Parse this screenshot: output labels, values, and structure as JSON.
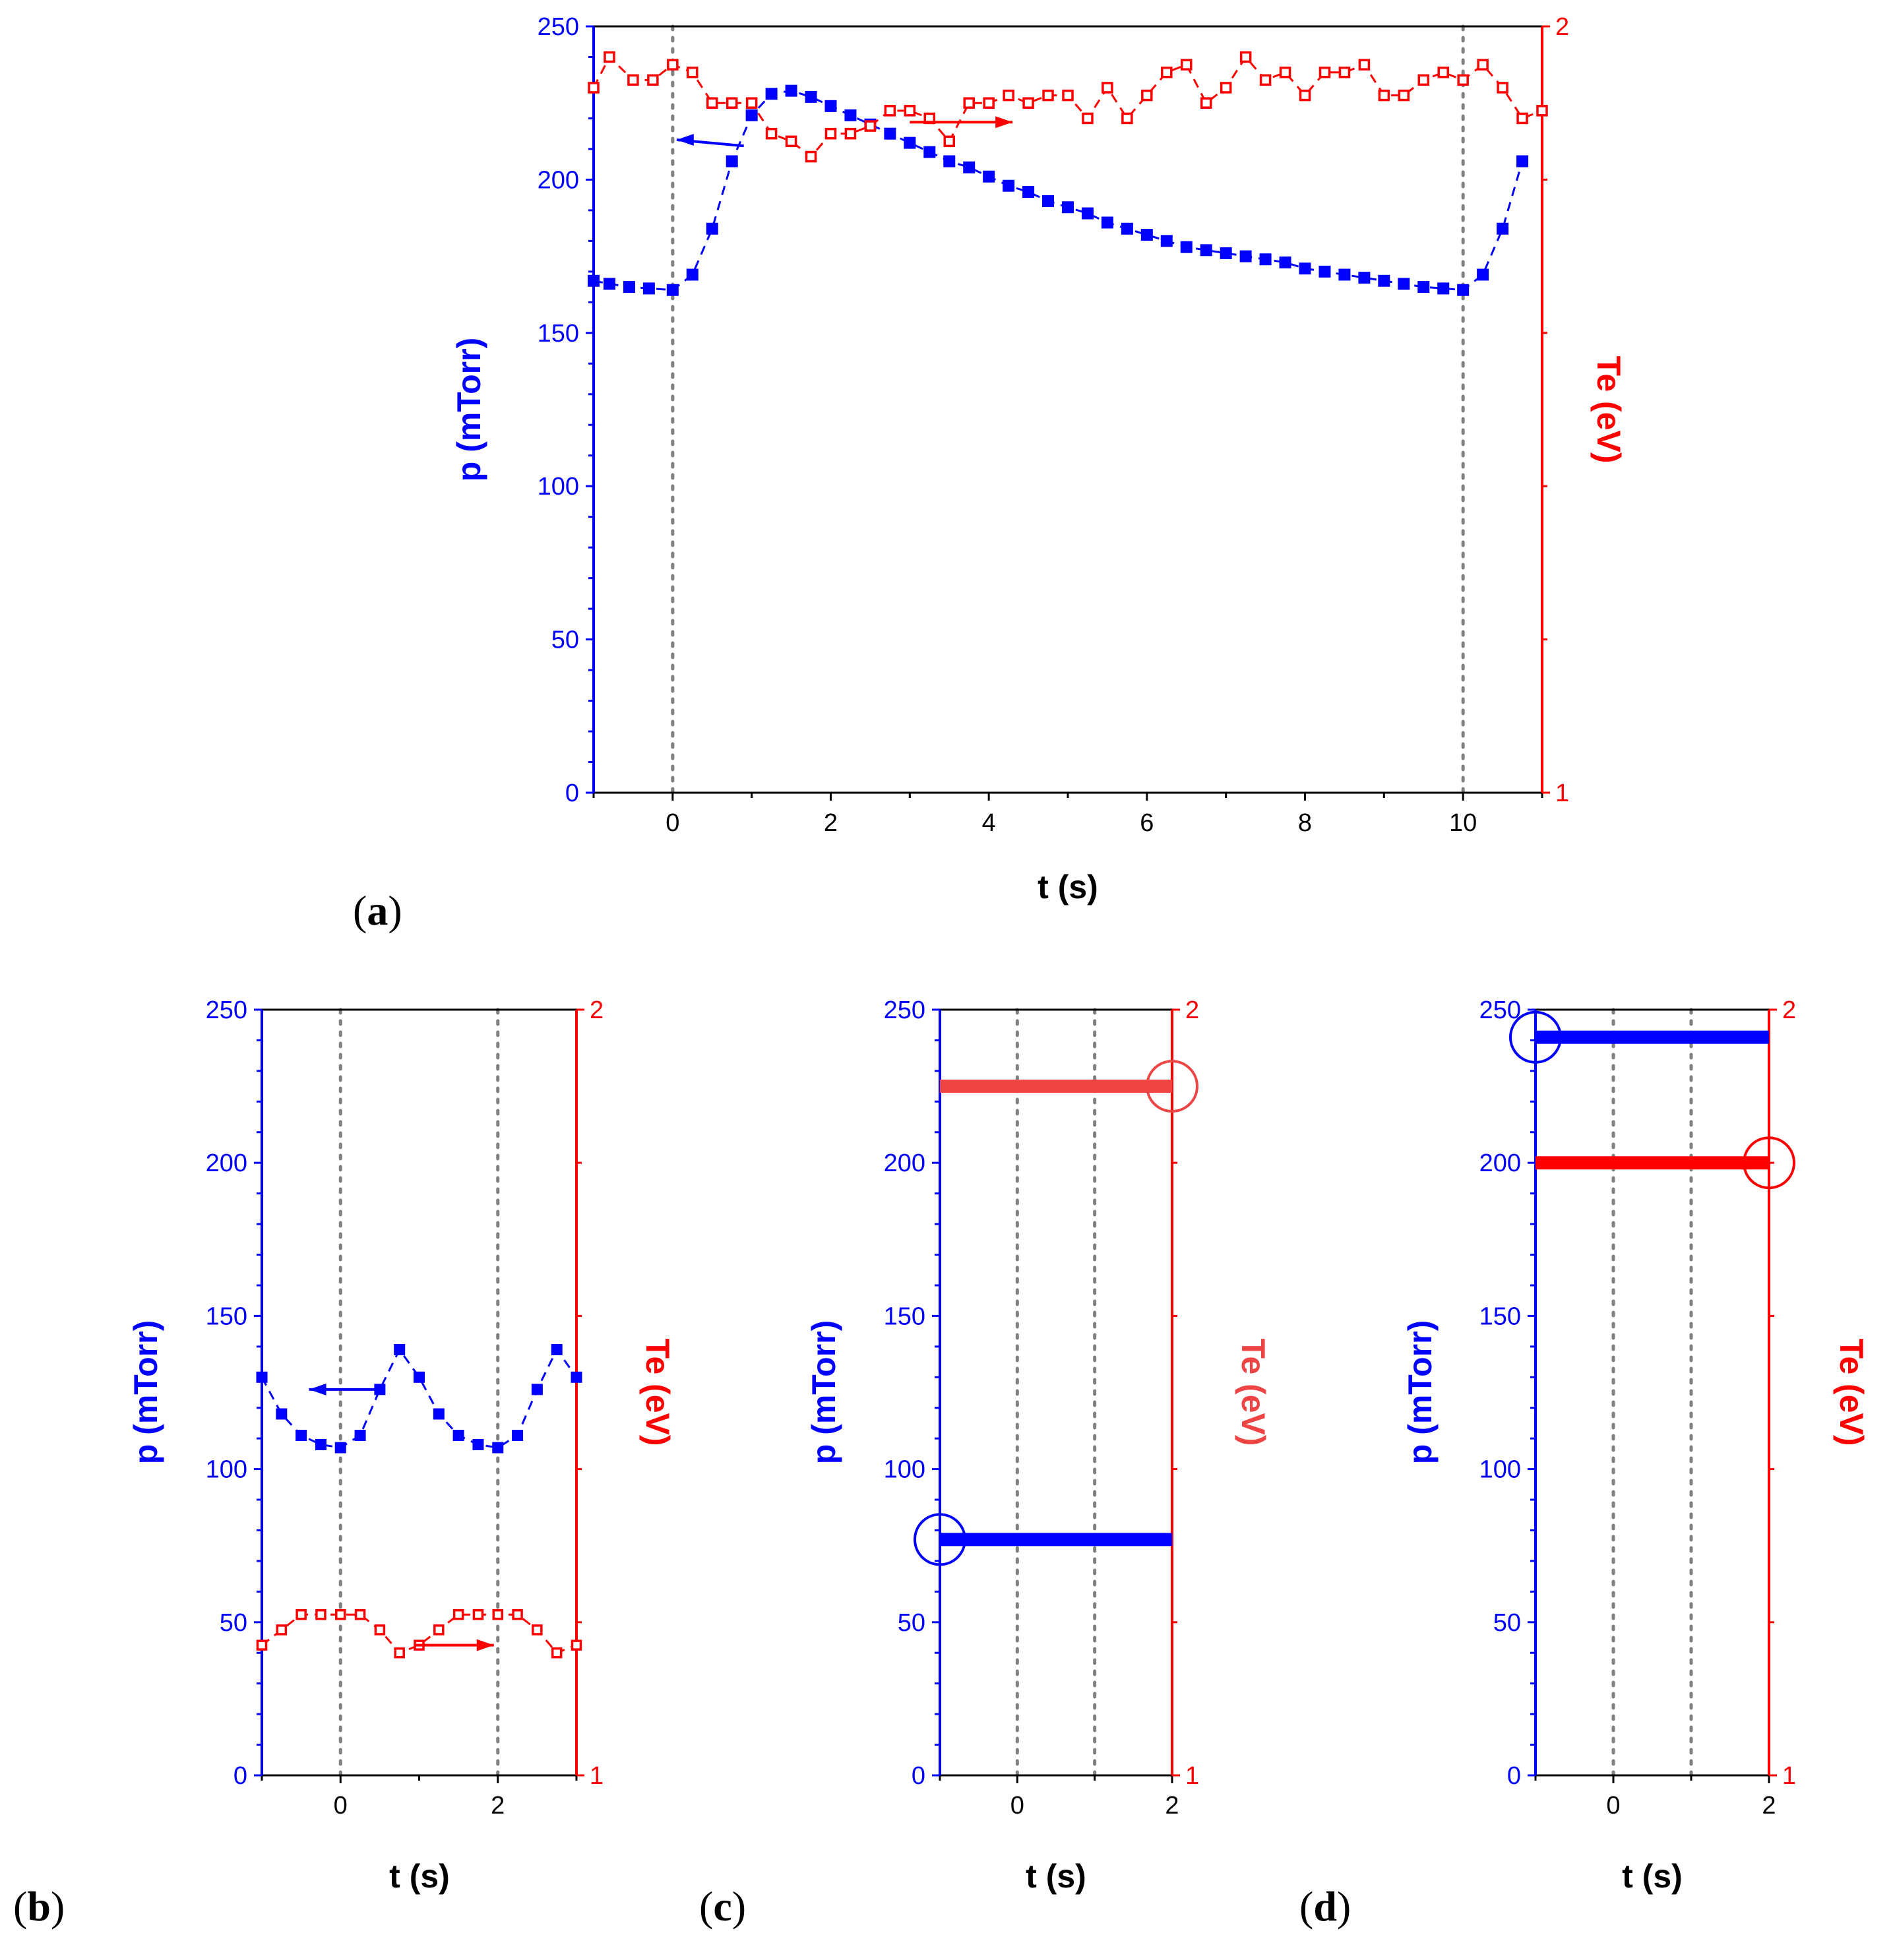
{
  "panels": [
    {
      "id": "a",
      "panel_label_open": "(",
      "panel_label_letter": "a",
      "panel_label_close": ")",
      "x_title": "t (s)",
      "left_title": "p (mTorr)",
      "right_title": "Te (eV)",
      "x_ticks": [
        "0",
        "2",
        "4",
        "6",
        "8",
        "10"
      ],
      "left_ticks": [
        "0",
        "50",
        "100",
        "150",
        "200",
        "250"
      ],
      "right_ticks": [
        "1",
        "2"
      ]
    },
    {
      "id": "b",
      "panel_label_open": "(",
      "panel_label_letter": "b",
      "panel_label_close": ")",
      "x_title": "t (s)",
      "left_title": "p (mTorr)",
      "right_title": "Te (eV)",
      "x_ticks": [
        "0",
        "2"
      ],
      "left_ticks": [
        "0",
        "50",
        "100",
        "150",
        "200",
        "250"
      ],
      "right_ticks": [
        "1",
        "2"
      ]
    },
    {
      "id": "c",
      "panel_label_open": "(",
      "panel_label_letter": "c",
      "panel_label_close": ")",
      "x_title": "t (s)",
      "left_title": "p (mTorr)",
      "right_title": "Te (eV)",
      "x_ticks": [
        "0",
        "2"
      ],
      "left_ticks": [
        "0",
        "50",
        "100",
        "150",
        "200",
        "250"
      ],
      "right_ticks": [
        "1",
        "2"
      ]
    },
    {
      "id": "d",
      "panel_label_open": "(",
      "panel_label_letter": "d",
      "panel_label_close": ")",
      "x_title": "t (s)",
      "left_title": "p (mTorr)",
      "right_title": "Te (eV)",
      "x_ticks": [
        "0",
        "2"
      ],
      "left_ticks": [
        "0",
        "50",
        "100",
        "150",
        "200",
        "250"
      ],
      "right_ticks": [
        "1",
        "2"
      ]
    }
  ],
  "colors": {
    "pressure": "#0000ff",
    "te": "#ff0000",
    "te_light": "#ee4444",
    "grid": "#808080",
    "axis_x": "#000000"
  },
  "chart_data": [
    {
      "panel": "a",
      "type": "scatter",
      "x_label": "t (s)",
      "y_left_label": "p (mTorr)",
      "y_right_label": "Te (eV)",
      "xlim": [
        -1,
        11
      ],
      "ylim_left": [
        0,
        250
      ],
      "ylim_right": [
        1,
        2
      ],
      "x_ticks": [
        0,
        2,
        4,
        6,
        8,
        10
      ],
      "y_left_ticks": [
        0,
        50,
        100,
        150,
        200,
        250
      ],
      "y_right_major_ticks": [
        1,
        2
      ],
      "y_right_minor_step": 0.2,
      "vlines": [
        0,
        10
      ],
      "series": [
        {
          "name": "p (mTorr)",
          "axis": "left",
          "marker": "filled-square",
          "color": "#0000ff",
          "x": [
            -1,
            -0.8,
            -0.55,
            -0.3,
            0,
            0.25,
            0.5,
            0.75,
            1.0,
            1.25,
            1.5,
            1.75,
            2.0,
            2.25,
            2.5,
            2.75,
            3.0,
            3.25,
            3.5,
            3.75,
            4.0,
            4.25,
            4.5,
            4.75,
            5.0,
            5.25,
            5.5,
            5.75,
            6.0,
            6.25,
            6.5,
            6.75,
            7.0,
            7.25,
            7.5,
            7.75,
            8.0,
            8.25,
            8.5,
            8.75,
            9.0,
            9.25,
            9.5,
            9.75,
            10.0,
            10.25,
            10.5,
            10.75
          ],
          "y": [
            167,
            166,
            165,
            164.5,
            164,
            169,
            184,
            206,
            221,
            228,
            229,
            227,
            224,
            221,
            218,
            215,
            212,
            209,
            206,
            204,
            201,
            198,
            196,
            193,
            191,
            189,
            186,
            184,
            182,
            180,
            178,
            177,
            176,
            175,
            174,
            173,
            171,
            170,
            169,
            168,
            167,
            166,
            165,
            164.5,
            164,
            169,
            184,
            206
          ]
        },
        {
          "name": "Te (eV)",
          "axis": "right",
          "marker": "open-square",
          "color": "#ff0000",
          "x": [
            -1,
            -0.8,
            -0.5,
            -0.25,
            0,
            0.25,
            0.5,
            0.75,
            1.0,
            1.25,
            1.5,
            1.75,
            2.0,
            2.25,
            2.5,
            2.75,
            3.0,
            3.25,
            3.5,
            3.75,
            4.0,
            4.25,
            4.5,
            4.75,
            5.0,
            5.25,
            5.5,
            5.75,
            6.0,
            6.25,
            6.5,
            6.75,
            7.0,
            7.25,
            7.5,
            7.75,
            8.0,
            8.25,
            8.5,
            8.75,
            9.0,
            9.25,
            9.5,
            9.75,
            10.0,
            10.25,
            10.5,
            10.75,
            11.0
          ],
          "y": [
            1.92,
            1.96,
            1.93,
            1.93,
            1.95,
            1.94,
            1.9,
            1.9,
            1.9,
            1.86,
            1.85,
            1.83,
            1.86,
            1.86,
            1.87,
            1.89,
            1.89,
            1.88,
            1.85,
            1.9,
            1.9,
            1.91,
            1.9,
            1.91,
            1.91,
            1.88,
            1.92,
            1.88,
            1.91,
            1.94,
            1.95,
            1.9,
            1.92,
            1.96,
            1.93,
            1.94,
            1.91,
            1.94,
            1.94,
            1.95,
            1.91,
            1.91,
            1.93,
            1.94,
            1.93,
            1.95,
            1.92,
            1.88,
            1.89
          ]
        }
      ],
      "annotations": [
        {
          "type": "arrow",
          "color": "#0000ff",
          "from": [
            0.9,
            211
          ],
          "to": [
            0.05,
            213
          ],
          "direction": "left"
        },
        {
          "type": "arrow",
          "color": "#ff0000",
          "from": [
            3.0,
            1.875
          ],
          "to": [
            4.3,
            1.875
          ],
          "direction": "right"
        }
      ]
    },
    {
      "panel": "b",
      "type": "scatter",
      "x_label": "t (s)",
      "y_left_label": "p (mTorr)",
      "y_right_label": "Te (eV)",
      "xlim": [
        -1,
        3
      ],
      "ylim_left": [
        0,
        250
      ],
      "ylim_right": [
        1,
        2
      ],
      "x_ticks": [
        0,
        2
      ],
      "y_left_ticks": [
        0,
        50,
        100,
        150,
        200,
        250
      ],
      "y_right_major_ticks": [
        1,
        2
      ],
      "y_right_minor_step": 0.2,
      "vlines": [
        0,
        2
      ],
      "series": [
        {
          "name": "p (mTorr)",
          "axis": "left",
          "marker": "filled-square",
          "color": "#0000ff",
          "x": [
            -1,
            -0.75,
            -0.5,
            -0.25,
            0,
            0.25,
            0.5,
            0.75,
            1.0,
            1.25,
            1.5,
            1.75,
            2.0,
            2.25,
            2.5,
            2.75,
            3.0
          ],
          "y": [
            130,
            118,
            111,
            108,
            107,
            111,
            126,
            139,
            130,
            118,
            111,
            108,
            107,
            111,
            126,
            139,
            130
          ]
        },
        {
          "name": "Te (eV)",
          "axis": "right",
          "marker": "open-square",
          "color": "#ff0000",
          "x": [
            -1,
            -0.75,
            -0.5,
            -0.25,
            0,
            0.25,
            0.5,
            0.75,
            1.0,
            1.25,
            1.5,
            1.75,
            2.0,
            2.25,
            2.5,
            2.75,
            3.0
          ],
          "y": [
            1.17,
            1.19,
            1.21,
            1.21,
            1.21,
            1.21,
            1.19,
            1.16,
            1.17,
            1.19,
            1.21,
            1.21,
            1.21,
            1.21,
            1.19,
            1.16,
            1.17
          ]
        }
      ],
      "annotations": [
        {
          "type": "arrow",
          "color": "#0000ff",
          "from": [
            0.45,
            126
          ],
          "to": [
            -0.4,
            126
          ],
          "direction": "left"
        },
        {
          "type": "arrow",
          "color": "#ff0000",
          "from": [
            0.95,
            1.17
          ],
          "to": [
            1.95,
            1.17
          ],
          "direction": "right"
        }
      ]
    },
    {
      "panel": "c",
      "type": "line",
      "x_label": "t (s)",
      "y_left_label": "p (mTorr)",
      "y_right_label": "Te (eV)",
      "xlim": [
        -1,
        2
      ],
      "ylim_left": [
        0,
        250
      ],
      "ylim_right": [
        1,
        2
      ],
      "x_ticks": [
        0,
        2
      ],
      "y_left_ticks": [
        0,
        50,
        100,
        150,
        200,
        250
      ],
      "y_right_major_ticks": [
        1,
        2
      ],
      "y_right_minor_step": 0.2,
      "vlines": [
        0,
        1
      ],
      "series": [
        {
          "name": "p (mTorr)",
          "axis": "left",
          "color": "#0000ff",
          "x": [
            -1,
            2
          ],
          "y": [
            77,
            77
          ],
          "highlight_end": "left"
        },
        {
          "name": "Te (eV)",
          "axis": "right",
          "color": "#ee4444",
          "x": [
            -1,
            2
          ],
          "y": [
            1.9,
            1.9
          ],
          "highlight_end": "right"
        }
      ]
    },
    {
      "panel": "d",
      "type": "line",
      "x_label": "t (s)",
      "y_left_label": "p (mTorr)",
      "y_right_label": "Te (eV)",
      "xlim": [
        -1,
        2
      ],
      "ylim_left": [
        0,
        250
      ],
      "ylim_right": [
        1,
        2
      ],
      "x_ticks": [
        0,
        2
      ],
      "y_left_ticks": [
        0,
        50,
        100,
        150,
        200,
        250
      ],
      "y_right_major_ticks": [
        1,
        2
      ],
      "y_right_minor_step": 0.2,
      "vlines": [
        0,
        1
      ],
      "series": [
        {
          "name": "p (mTorr)",
          "axis": "left",
          "color": "#0000ff",
          "x": [
            -1,
            2
          ],
          "y": [
            241,
            241
          ],
          "highlight_end": "left"
        },
        {
          "name": "Te (eV)",
          "axis": "right",
          "color": "#ff0000",
          "x": [
            -1,
            2
          ],
          "y": [
            1.8,
            1.8
          ],
          "highlight_end": "right"
        }
      ]
    }
  ]
}
